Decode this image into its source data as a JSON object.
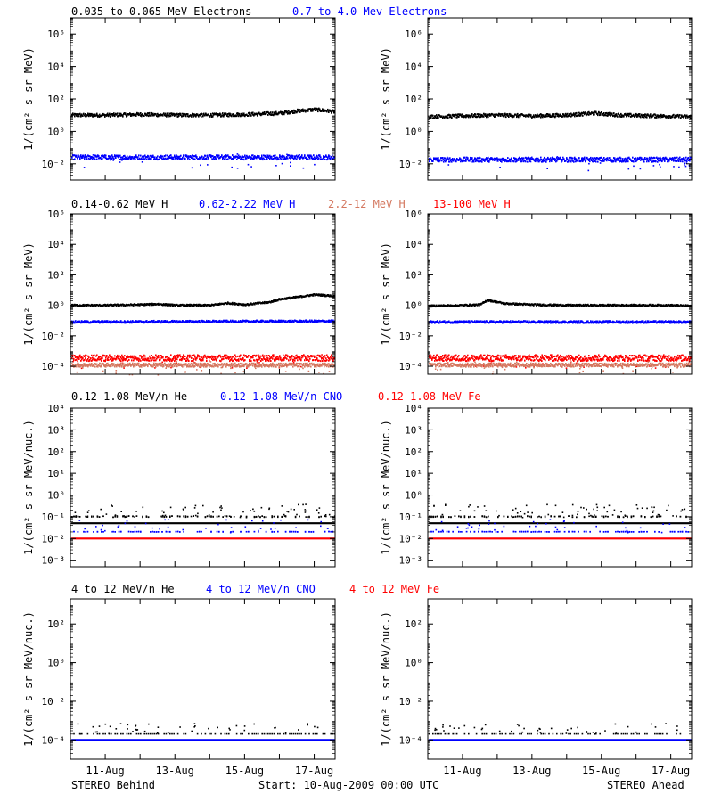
{
  "colors": {
    "black": "#000000",
    "blue": "#0000ff",
    "salmon": "#d47860",
    "red": "#ff0000",
    "gray": "#9a9a9a"
  },
  "footer": {
    "left": "STEREO Behind",
    "center": "Start: 10-Aug-2009 00:00 UTC",
    "right": "STEREO Ahead"
  },
  "x_axis": {
    "start_date": "10-Aug-2009",
    "tick_labels": [
      "11-Aug",
      "13-Aug",
      "15-Aug",
      "17-Aug"
    ]
  },
  "rows": [
    {
      "legend": [
        {
          "text": "0.035 to 0.065 MeV Electrons",
          "color": "#000000"
        },
        {
          "text": "0.7 to 4.0 Mev Electrons",
          "color": "#0000ff"
        }
      ],
      "ylabel": "1/(cm² s sr MeV)",
      "tick_labels": [
        "10⁻²",
        "10⁰",
        "10²",
        "10⁴",
        "10⁶"
      ]
    },
    {
      "legend": [
        {
          "text": "0.14-0.62 MeV H",
          "color": "#000000"
        },
        {
          "text": "0.62-2.22 MeV H",
          "color": "#0000ff"
        },
        {
          "text": "2.2-12 MeV H",
          "color": "#d47860"
        },
        {
          "text": "13-100 MeV H",
          "color": "#ff0000"
        }
      ],
      "ylabel": "1/(cm² s sr MeV)",
      "tick_labels": [
        "10⁻⁴",
        "10⁻²",
        "10⁰",
        "10²",
        "10⁴",
        "10⁶"
      ]
    },
    {
      "legend": [
        {
          "text": "0.12-1.08 MeV/n He",
          "color": "#000000"
        },
        {
          "text": "0.12-1.08 MeV/n CNO",
          "color": "#0000ff"
        },
        {
          "text": "0.12-1.08 MeV Fe",
          "color": "#ff0000"
        }
      ],
      "ylabel": "1/(cm² s sr MeV/nuc.)",
      "tick_labels": [
        "10⁻³",
        "10⁻²",
        "10⁻¹",
        "10⁰",
        "10¹",
        "10²",
        "10³",
        "10⁴"
      ]
    },
    {
      "legend": [
        {
          "text": "4 to 12 MeV/n He",
          "color": "#000000"
        },
        {
          "text": "4 to 12 MeV/n CNO",
          "color": "#0000ff"
        },
        {
          "text": "4 to 12 MeV Fe",
          "color": "#ff0000"
        }
      ],
      "ylabel": "1/(cm² s sr MeV/nuc.)",
      "tick_labels": [
        "10⁻⁴",
        "10⁻²",
        "10⁰",
        "10²"
      ]
    }
  ],
  "chart_data": [
    {
      "type": "scatter",
      "panel": "Behind electrons",
      "yscale": "log",
      "xlim": [
        0,
        7.6
      ],
      "ylim": [
        0.001,
        10000000
      ],
      "series": [
        {
          "name": "0.035 to 0.065 MeV Electrons",
          "color": "#000000",
          "x": [
            0,
            1,
            2,
            3,
            4,
            5,
            6,
            6.5,
            7,
            7.6
          ],
          "y": [
            10,
            10,
            11,
            10,
            10,
            11,
            13,
            18,
            22,
            16
          ],
          "spread": 0.1,
          "scatter_dots": 0
        },
        {
          "name": "0.7 to 4.0 Mev Electrons",
          "color": "#0000ff",
          "x": [
            0,
            7.6
          ],
          "y": [
            0.025,
            0.025
          ],
          "spread": 0.14,
          "scatter_dots": 30
        }
      ]
    },
    {
      "type": "scatter",
      "panel": "Ahead electrons",
      "yscale": "log",
      "xlim": [
        0,
        7.6
      ],
      "ylim": [
        0.001,
        10000000
      ],
      "series": [
        {
          "name": "0.035 to 0.065 MeV Electrons",
          "color": "#000000",
          "x": [
            0,
            1,
            2,
            3,
            4,
            4.8,
            5.5,
            6.5,
            7.6
          ],
          "y": [
            8,
            9,
            10,
            9,
            10,
            13,
            10,
            9,
            8
          ],
          "spread": 0.1,
          "scatter_dots": 0
        },
        {
          "name": "0.7 to 4.0 Mev Electrons",
          "color": "#0000ff",
          "x": [
            0,
            7.6
          ],
          "y": [
            0.018,
            0.018
          ],
          "spread": 0.14,
          "scatter_dots": 30
        }
      ]
    },
    {
      "type": "scatter",
      "panel": "Behind protons",
      "yscale": "log",
      "xlim": [
        0,
        7.6
      ],
      "ylim": [
        3e-05,
        1000000
      ],
      "series": [
        {
          "name": "0.14-0.62 MeV H",
          "color": "#000000",
          "x": [
            0,
            1,
            2,
            2.5,
            3,
            4,
            4.5,
            5,
            5.7,
            6,
            6.5,
            7,
            7.6
          ],
          "y": [
            1,
            1,
            1.1,
            1.2,
            1,
            1,
            1.4,
            1.1,
            1.6,
            2.5,
            3.5,
            5,
            4
          ],
          "spread": 0.05,
          "scatter_dots": 0
        },
        {
          "name": "0.62-2.22 MeV H",
          "color": "#0000ff",
          "x": [
            0,
            7.6
          ],
          "y": [
            0.08,
            0.09
          ],
          "spread": 0.07,
          "scatter_dots": 0
        },
        {
          "name": "13-100 MeV H",
          "color": "#ff0000",
          "x": [
            0,
            7.6
          ],
          "y": [
            0.00035,
            0.00035
          ],
          "spread": 0.2,
          "scatter_dots": 60
        },
        {
          "name": "2.2-12 MeV H",
          "color": "#d47860",
          "x": [
            0,
            7.6
          ],
          "y": [
            0.00012,
            0.00012
          ],
          "spread": 0.12,
          "scatter_dots": 40
        }
      ]
    },
    {
      "type": "scatter",
      "panel": "Ahead protons",
      "yscale": "log",
      "xlim": [
        0,
        7.6
      ],
      "ylim": [
        3e-05,
        1000000
      ],
      "series": [
        {
          "name": "0.14-0.62 MeV H",
          "color": "#000000",
          "x": [
            0,
            1,
            1.5,
            1.7,
            2.2,
            3,
            4,
            5,
            6,
            7,
            7.6
          ],
          "y": [
            0.9,
            1,
            1.1,
            2.2,
            1.3,
            1.1,
            1,
            1,
            1,
            1,
            0.9
          ],
          "spread": 0.05,
          "scatter_dots": 0
        },
        {
          "name": "0.62-2.22 MeV H",
          "color": "#0000ff",
          "x": [
            0,
            7.6
          ],
          "y": [
            0.08,
            0.08
          ],
          "spread": 0.07,
          "scatter_dots": 0
        },
        {
          "name": "13-100 MeV H",
          "color": "#ff0000",
          "x": [
            0,
            7.6
          ],
          "y": [
            0.00035,
            0.00035
          ],
          "spread": 0.2,
          "scatter_dots": 60
        },
        {
          "name": "2.2-12 MeV H",
          "color": "#d47860",
          "x": [
            0,
            7.6
          ],
          "y": [
            0.00012,
            0.00012
          ],
          "spread": 0.12,
          "scatter_dots": 40
        }
      ]
    },
    {
      "type": "scatter",
      "panel": "Behind heavy ions low",
      "yscale": "log",
      "xlim": [
        0,
        7.6
      ],
      "ylim": [
        0.0005,
        10000
      ],
      "series": [
        {
          "name": "0.12-1.08 MeV/n He",
          "color": "#000000",
          "x": [
            0,
            7.6
          ],
          "y": [
            0.1,
            0.1
          ],
          "spread": 0.03,
          "scatter_dots": 70,
          "sparse": true
        },
        {
          "name": "background",
          "color": "#000000",
          "x": [
            0,
            7.6
          ],
          "y": [
            0.05,
            0.05
          ],
          "spread": 0,
          "scatter_dots": 0
        },
        {
          "name": "0.12-1.08 MeV/n CNO",
          "color": "#0000ff",
          "x": [
            0,
            7.6
          ],
          "y": [
            0.02,
            0.02
          ],
          "spread": 0.01,
          "scatter_dots": 40,
          "sparse": true
        },
        {
          "name": "0.12-1.08 MeV Fe",
          "color": "#ff0000",
          "x": [
            0,
            7.6
          ],
          "y": [
            0.01,
            0.01
          ],
          "spread": 0,
          "scatter_dots": 0
        }
      ]
    },
    {
      "type": "scatter",
      "panel": "Ahead heavy ions low",
      "yscale": "log",
      "xlim": [
        0,
        7.6
      ],
      "ylim": [
        0.0005,
        10000
      ],
      "series": [
        {
          "name": "0.12-1.08 MeV/n He",
          "color": "#000000",
          "x": [
            0,
            7.6
          ],
          "y": [
            0.1,
            0.1
          ],
          "spread": 0.03,
          "scatter_dots": 70,
          "sparse": true
        },
        {
          "name": "background",
          "color": "#000000",
          "x": [
            0,
            7.6
          ],
          "y": [
            0.05,
            0.05
          ],
          "spread": 0,
          "scatter_dots": 0
        },
        {
          "name": "0.12-1.08 MeV/n CNO",
          "color": "#0000ff",
          "x": [
            0,
            7.6
          ],
          "y": [
            0.02,
            0.02
          ],
          "spread": 0.01,
          "scatter_dots": 40,
          "sparse": true
        },
        {
          "name": "0.12-1.08 MeV Fe",
          "color": "#ff0000",
          "x": [
            0,
            7.6
          ],
          "y": [
            0.01,
            0.01
          ],
          "spread": 0,
          "scatter_dots": 0
        }
      ]
    },
    {
      "type": "scatter",
      "panel": "Behind heavy ions high",
      "yscale": "log",
      "xlim": [
        0,
        7.6
      ],
      "ylim": [
        1e-05,
        2000
      ],
      "series": [
        {
          "name": "4 to 12 MeV/n He",
          "color": "#000000",
          "x": [
            0,
            7.6
          ],
          "y": [
            0.0002,
            0.0002
          ],
          "spread": 0,
          "scatter_dots": 45,
          "sparse": true
        },
        {
          "name": "4 to 12 MeV/n CNO",
          "color": "#0000ff",
          "x": [
            0,
            7.6
          ],
          "y": [
            0.0001,
            0.0001
          ],
          "spread": 0,
          "scatter_dots": 0
        }
      ]
    },
    {
      "type": "scatter",
      "panel": "Ahead heavy ions high",
      "yscale": "log",
      "xlim": [
        0,
        7.6
      ],
      "ylim": [
        1e-05,
        2000
      ],
      "series": [
        {
          "name": "4 to 12 MeV/n He",
          "color": "#000000",
          "x": [
            0,
            7.6
          ],
          "y": [
            0.0002,
            0.0002
          ],
          "spread": 0,
          "scatter_dots": 45,
          "sparse": true
        },
        {
          "name": "4 to 12 MeV/n CNO",
          "color": "#0000ff",
          "x": [
            0,
            7.6
          ],
          "y": [
            0.0001,
            0.0001
          ],
          "spread": 0,
          "scatter_dots": 0
        }
      ]
    }
  ]
}
